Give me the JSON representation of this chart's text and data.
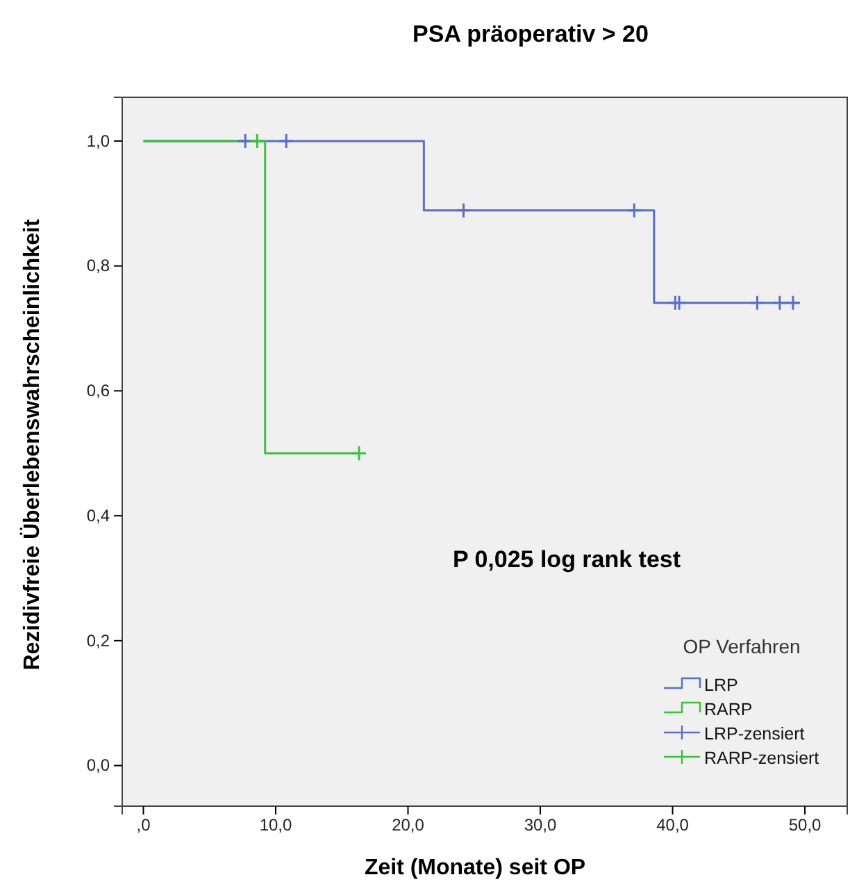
{
  "chart_data": {
    "type": "step",
    "title": "PSA präoperativ > 20",
    "xlabel": "Zeit (Monate) seit OP",
    "ylabel": "Rezidivfreie Überlebenswahrscheinlichkeit",
    "legend_title": "OP Verfahren",
    "legend": "bottom right",
    "grid": false,
    "annotations": [
      "P 0,025 log rank test"
    ],
    "xlim": [
      -1.6,
      53.2
    ],
    "ylim": [
      -0.065,
      1.07
    ],
    "xticks": [
      {
        "value": 0,
        "label": ",0"
      },
      {
        "value": 10,
        "label": "10,0"
      },
      {
        "value": 20,
        "label": "20,0"
      },
      {
        "value": 30,
        "label": "30,0"
      },
      {
        "value": 40,
        "label": "40,0"
      },
      {
        "value": 50,
        "label": "50,0"
      }
    ],
    "yticks": [
      {
        "value": 0,
        "label": "0,0"
      },
      {
        "value": 0.2,
        "label": "0,2"
      },
      {
        "value": 0.4,
        "label": "0,4"
      },
      {
        "value": 0.6,
        "label": "0,6"
      },
      {
        "value": 0.8,
        "label": "0,8"
      },
      {
        "value": 1,
        "label": "1,0"
      }
    ],
    "series": [
      {
        "name": "LRP",
        "marker": "none",
        "color": "#5a6fc2",
        "x": [
          0,
          21.2,
          38.6,
          49.6
        ],
        "values": [
          1,
          0.889,
          0.741,
          0.741
        ]
      },
      {
        "name": "RARP",
        "marker": "none",
        "color": "#3cbf3c",
        "x": [
          0,
          9.2,
          16.3
        ],
        "values": [
          1,
          0.5,
          0.5
        ]
      },
      {
        "name": "LRP-zensiert",
        "type": "scatter",
        "marker": "cross",
        "color": "#5a6fc2",
        "x": [
          7.7,
          10.8,
          24.2,
          37.1,
          40.2,
          40.5,
          46.4,
          48.1,
          49.1
        ],
        "values": [
          1,
          1,
          0.889,
          0.889,
          0.741,
          0.741,
          0.741,
          0.741,
          0.741
        ]
      },
      {
        "name": "RARP-zensiert",
        "type": "scatter",
        "marker": "cross",
        "color": "#3cbf3c",
        "x": [
          8.6,
          16.3
        ],
        "values": [
          1,
          0.5
        ]
      }
    ]
  }
}
